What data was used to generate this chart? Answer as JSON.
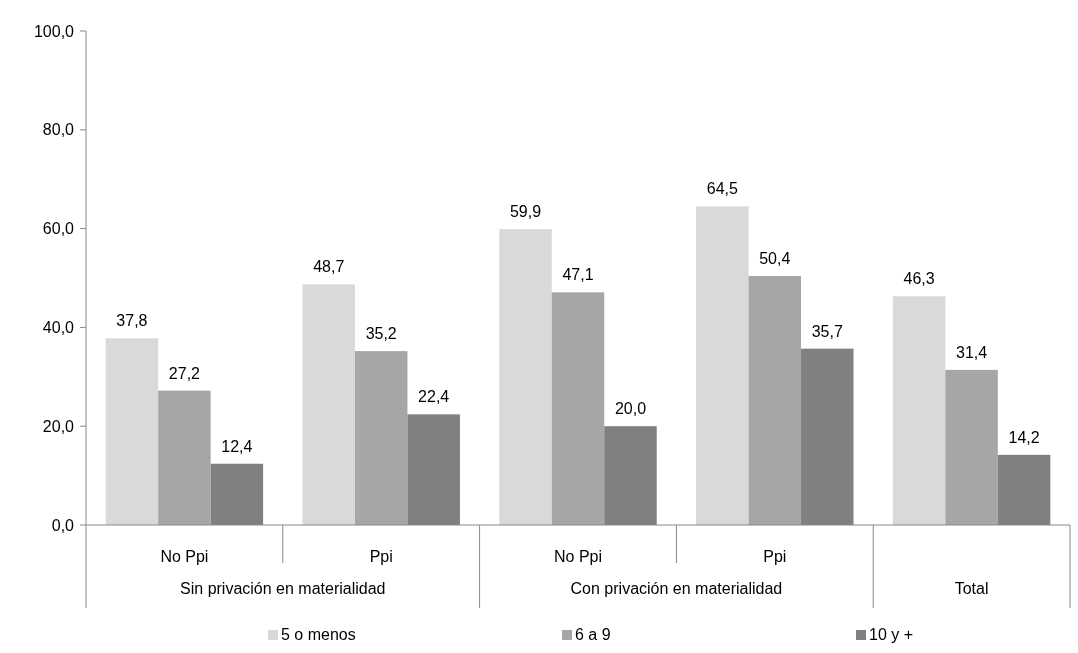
{
  "chart_data": {
    "type": "bar",
    "categories": [
      "No Ppi",
      "Ppi",
      "No Ppi",
      "Ppi",
      null
    ],
    "annotations": [
      "Sin privación en materialidad",
      "Con privación en materialidad",
      "Total"
    ],
    "series": [
      {
        "name": "5 o menos",
        "color": "#d9d9d9",
        "values": [
          37.8,
          48.7,
          59.9,
          64.5,
          46.3
        ],
        "value_labels": [
          "37,8",
          "48,7",
          "59,9",
          "64,5",
          "46,3"
        ]
      },
      {
        "name": "6 a 9",
        "color": "#a6a6a6",
        "values": [
          27.2,
          35.2,
          47.1,
          50.4,
          31.4
        ],
        "value_labels": [
          "27,2",
          "35,2",
          "47,1",
          "50,4",
          "31,4"
        ]
      },
      {
        "name": "10 y +",
        "color": "#808080",
        "values": [
          12.4,
          22.4,
          20.0,
          35.7,
          14.2
        ],
        "value_labels": [
          "12,4",
          "22,4",
          "20,0",
          "35,7",
          "14,2"
        ]
      }
    ],
    "ylim": [
      0,
      100
    ],
    "yticks": [
      {
        "value": 0,
        "label": "0,0"
      },
      {
        "value": 20,
        "label": "20,0"
      },
      {
        "value": 40,
        "label": "40,0"
      },
      {
        "value": 60,
        "label": "60,0"
      },
      {
        "value": 80,
        "label": "80,0"
      },
      {
        "value": 100,
        "label": "100,0"
      }
    ],
    "grid": false,
    "legend": "bottom"
  }
}
